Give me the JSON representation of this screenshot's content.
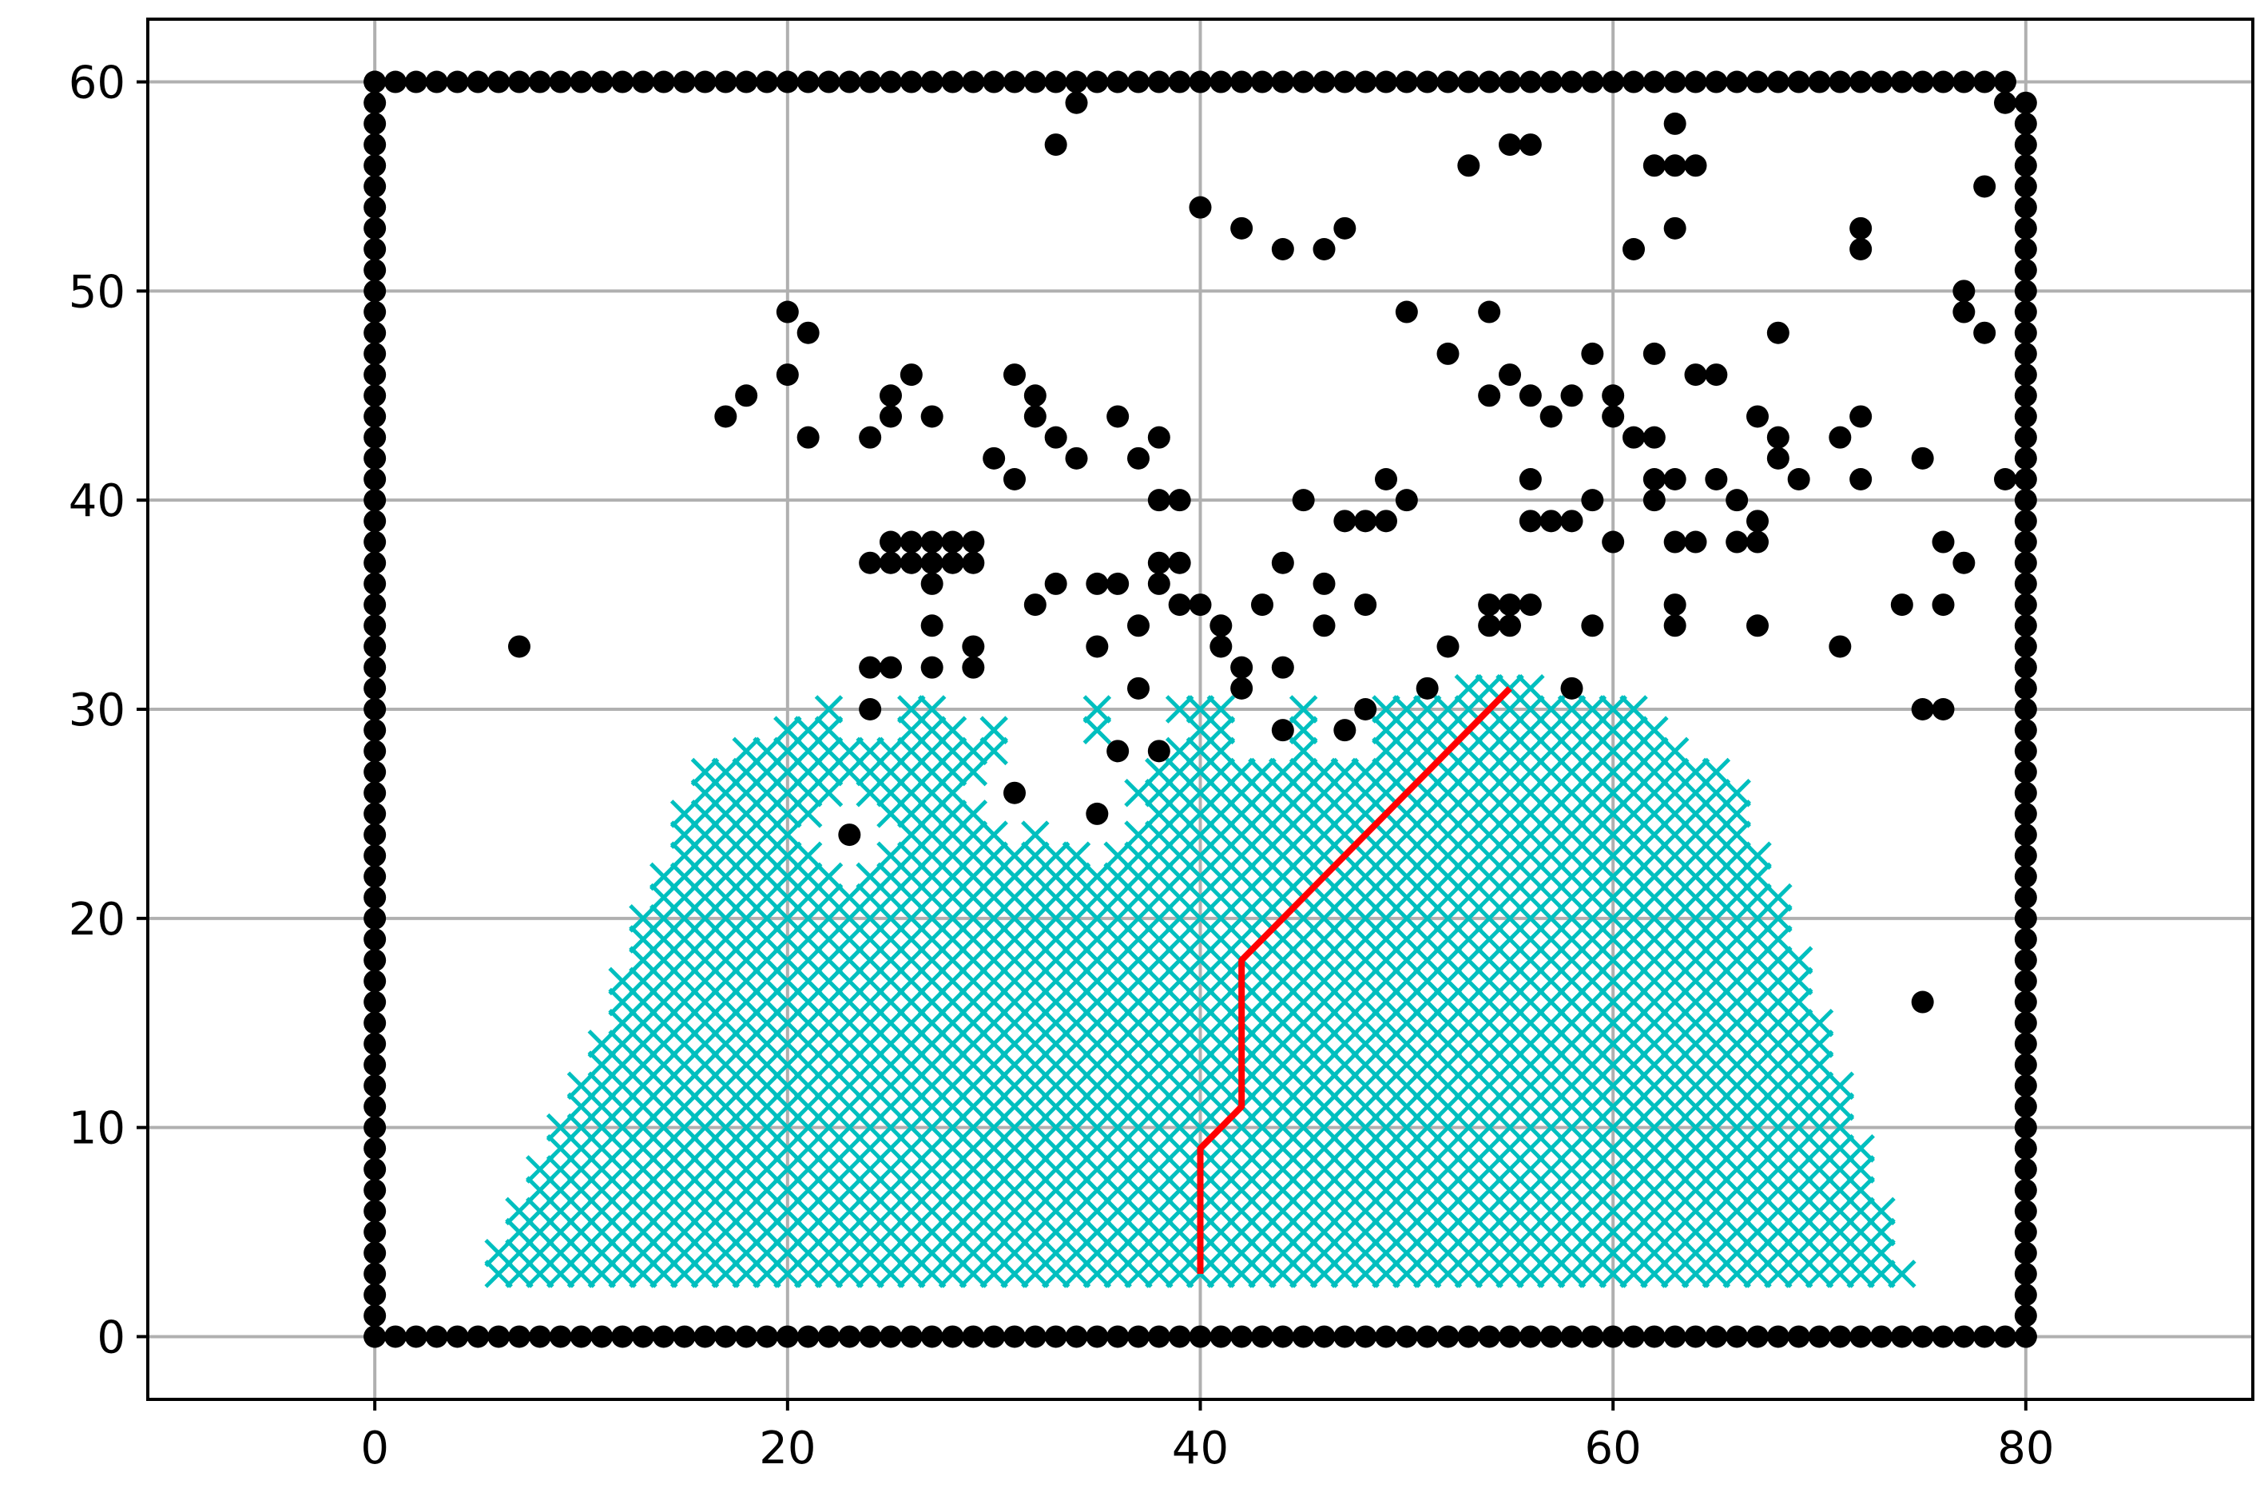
{
  "chart_data": {
    "type": "scatter",
    "title": "",
    "xlabel": "",
    "ylabel": "",
    "xlim": [
      -11,
      91
    ],
    "ylim": [
      -3,
      63
    ],
    "x_ticks": [
      0,
      20,
      40,
      60,
      80
    ],
    "y_ticks": [
      0,
      10,
      20,
      30,
      40,
      50,
      60
    ],
    "x_tick_labels": [
      "0",
      "20",
      "40",
      "60",
      "80"
    ],
    "y_tick_labels": [
      "0",
      "10",
      "20",
      "30",
      "40",
      "50",
      "60"
    ],
    "grid": true,
    "legend": "none",
    "colors": {
      "obstacles": "#000000",
      "visited": "#00bfbf",
      "path": "#ff0000",
      "grid": "#b0b0b0"
    },
    "series": [
      {
        "kind": "obstacles",
        "marker": "circle",
        "boundary": {
          "xmin": 0,
          "xmax": 80,
          "ymin": 0,
          "ymax": 60,
          "x_end_top": 79,
          "y_end_right": 59
        },
        "points": [
          [
            7,
            33
          ],
          [
            17,
            44
          ],
          [
            18,
            45
          ],
          [
            20,
            49
          ],
          [
            20,
            46
          ],
          [
            21,
            48
          ],
          [
            21,
            43
          ],
          [
            23,
            24
          ],
          [
            24,
            43
          ],
          [
            24,
            37
          ],
          [
            24,
            32
          ],
          [
            24,
            30
          ],
          [
            25,
            45
          ],
          [
            25,
            44
          ],
          [
            25,
            38
          ],
          [
            25,
            37
          ],
          [
            25,
            32
          ],
          [
            26,
            46
          ],
          [
            26,
            38
          ],
          [
            26,
            37
          ],
          [
            27,
            44
          ],
          [
            27,
            38
          ],
          [
            27,
            37
          ],
          [
            27,
            36
          ],
          [
            27,
            34
          ],
          [
            27,
            32
          ],
          [
            28,
            38
          ],
          [
            28,
            37
          ],
          [
            29,
            38
          ],
          [
            29,
            37
          ],
          [
            29,
            33
          ],
          [
            29,
            32
          ],
          [
            30,
            42
          ],
          [
            31,
            46
          ],
          [
            31,
            41
          ],
          [
            31,
            26
          ],
          [
            32,
            45
          ],
          [
            32,
            44
          ],
          [
            32,
            35
          ],
          [
            33,
            57
          ],
          [
            33,
            43
          ],
          [
            33,
            36
          ],
          [
            34,
            59
          ],
          [
            34,
            42
          ],
          [
            35,
            36
          ],
          [
            35,
            33
          ],
          [
            35,
            25
          ],
          [
            36,
            44
          ],
          [
            36,
            36
          ],
          [
            36,
            28
          ],
          [
            37,
            42
          ],
          [
            37,
            34
          ],
          [
            37,
            31
          ],
          [
            38,
            43
          ],
          [
            38,
            40
          ],
          [
            38,
            37
          ],
          [
            38,
            36
          ],
          [
            38,
            28
          ],
          [
            39,
            40
          ],
          [
            39,
            37
          ],
          [
            39,
            35
          ],
          [
            40,
            54
          ],
          [
            40,
            35
          ],
          [
            41,
            34
          ],
          [
            41,
            33
          ],
          [
            42,
            53
          ],
          [
            42,
            32
          ],
          [
            42,
            31
          ],
          [
            43,
            35
          ],
          [
            44,
            52
          ],
          [
            44,
            37
          ],
          [
            44,
            32
          ],
          [
            44,
            29
          ],
          [
            45,
            40
          ],
          [
            46,
            52
          ],
          [
            46,
            36
          ],
          [
            46,
            34
          ],
          [
            47,
            53
          ],
          [
            47,
            39
          ],
          [
            47,
            29
          ],
          [
            48,
            39
          ],
          [
            48,
            35
          ],
          [
            48,
            30
          ],
          [
            49,
            41
          ],
          [
            49,
            39
          ],
          [
            50,
            49
          ],
          [
            50,
            40
          ],
          [
            51,
            31
          ],
          [
            52,
            47
          ],
          [
            52,
            33
          ],
          [
            53,
            56
          ],
          [
            54,
            49
          ],
          [
            54,
            45
          ],
          [
            54,
            35
          ],
          [
            54,
            34
          ],
          [
            55,
            57
          ],
          [
            55,
            46
          ],
          [
            55,
            35
          ],
          [
            55,
            34
          ],
          [
            56,
            57
          ],
          [
            56,
            45
          ],
          [
            56,
            41
          ],
          [
            56,
            39
          ],
          [
            56,
            35
          ],
          [
            57,
            44
          ],
          [
            57,
            39
          ],
          [
            58,
            45
          ],
          [
            58,
            39
          ],
          [
            58,
            31
          ],
          [
            59,
            47
          ],
          [
            59,
            40
          ],
          [
            59,
            34
          ],
          [
            60,
            45
          ],
          [
            60,
            44
          ],
          [
            60,
            38
          ],
          [
            61,
            52
          ],
          [
            61,
            43
          ],
          [
            62,
            56
          ],
          [
            62,
            47
          ],
          [
            62,
            43
          ],
          [
            62,
            41
          ],
          [
            62,
            40
          ],
          [
            63,
            58
          ],
          [
            63,
            56
          ],
          [
            63,
            53
          ],
          [
            63,
            41
          ],
          [
            63,
            38
          ],
          [
            63,
            35
          ],
          [
            63,
            34
          ],
          [
            64,
            56
          ],
          [
            64,
            46
          ],
          [
            64,
            38
          ],
          [
            65,
            46
          ],
          [
            65,
            41
          ],
          [
            66,
            40
          ],
          [
            66,
            38
          ],
          [
            67,
            44
          ],
          [
            67,
            39
          ],
          [
            67,
            38
          ],
          [
            67,
            34
          ],
          [
            68,
            48
          ],
          [
            68,
            43
          ],
          [
            68,
            42
          ],
          [
            69,
            41
          ],
          [
            71,
            43
          ],
          [
            71,
            33
          ],
          [
            72,
            53
          ],
          [
            72,
            52
          ],
          [
            72,
            44
          ],
          [
            72,
            41
          ],
          [
            74,
            35
          ],
          [
            75,
            42
          ],
          [
            75,
            30
          ],
          [
            75,
            16
          ],
          [
            76,
            38
          ],
          [
            76,
            35
          ],
          [
            76,
            30
          ],
          [
            77,
            50
          ],
          [
            77,
            49
          ],
          [
            77,
            37
          ],
          [
            78,
            55
          ],
          [
            78,
            48
          ],
          [
            79,
            59
          ],
          [
            79,
            41
          ]
        ]
      },
      {
        "kind": "visited",
        "marker": "x",
        "region": {
          "ymin": 3,
          "ymax": 31,
          "rows": [
            [
              3,
              6,
              74
            ],
            [
              4,
              6,
              73
            ],
            [
              5,
              7,
              73
            ],
            [
              6,
              7,
              73
            ],
            [
              7,
              8,
              72
            ],
            [
              8,
              8,
              72
            ],
            [
              9,
              9,
              72
            ],
            [
              10,
              9,
              71
            ],
            [
              11,
              10,
              71
            ],
            [
              12,
              10,
              71
            ],
            [
              13,
              11,
              70
            ],
            [
              14,
              11,
              70
            ],
            [
              15,
              12,
              70
            ],
            [
              16,
              12,
              69
            ],
            [
              17,
              12,
              69
            ],
            [
              18,
              13,
              69
            ],
            [
              19,
              13,
              68
            ],
            [
              20,
              13,
              68
            ],
            [
              21,
              14,
              68
            ],
            [
              22,
              14,
              67
            ],
            [
              23,
              15,
              67
            ],
            [
              24,
              15,
              66
            ],
            [
              25,
              15,
              66
            ],
            [
              26,
              16,
              66
            ],
            [
              27,
              16,
              65
            ],
            [
              28,
              18,
              63
            ],
            [
              29,
              20,
              62
            ],
            [
              30,
              22,
              61
            ],
            [
              31,
              53,
              56
            ]
          ],
          "holes": [
            [
              23,
              24,
              2.1
            ],
            [
              31,
              26,
              2.2
            ],
            [
              32,
              27,
              1.9
            ],
            [
              35,
              25,
              2.2
            ],
            [
              33,
              30,
              1.8
            ],
            [
              37,
              29,
              1.6
            ],
            [
              38,
              29,
              1.4
            ],
            [
              43,
              29,
              1.5
            ],
            [
              47,
              29,
              1.5
            ],
            [
              44,
              31,
              1.2
            ],
            [
              42,
              31,
              1.3
            ],
            [
              31,
              30,
              1.2
            ],
            [
              24,
              30,
              1.5
            ],
            [
              29,
              30,
              1.3
            ],
            [
              34,
              27,
              1.5
            ],
            [
              33,
              25,
              1.3
            ],
            [
              36,
              27,
              1.4
            ]
          ]
        }
      },
      {
        "kind": "path",
        "marker": "line",
        "points": [
          [
            40,
            3
          ],
          [
            40,
            9
          ],
          [
            41,
            10
          ],
          [
            42,
            11
          ],
          [
            42,
            18
          ],
          [
            43,
            19
          ],
          [
            44,
            20
          ],
          [
            45,
            21
          ],
          [
            46,
            22
          ],
          [
            47,
            23
          ],
          [
            48,
            24
          ],
          [
            49,
            25
          ],
          [
            50,
            26
          ],
          [
            51,
            27
          ],
          [
            52,
            28
          ],
          [
            53,
            29
          ],
          [
            54,
            30
          ],
          [
            55,
            31
          ]
        ]
      }
    ]
  }
}
